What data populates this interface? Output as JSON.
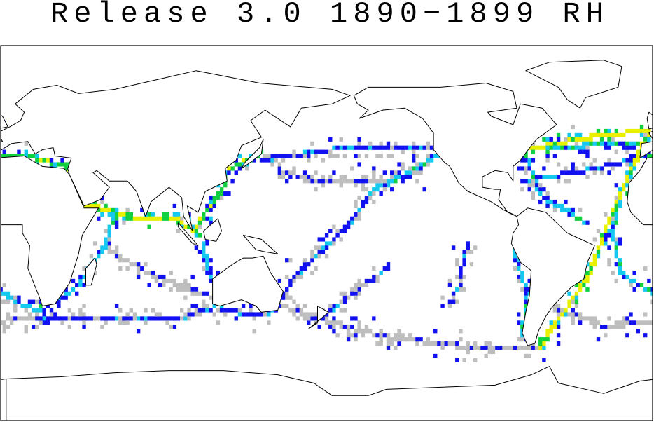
{
  "title": "Release 3.0 1890−1899 RH"
}
